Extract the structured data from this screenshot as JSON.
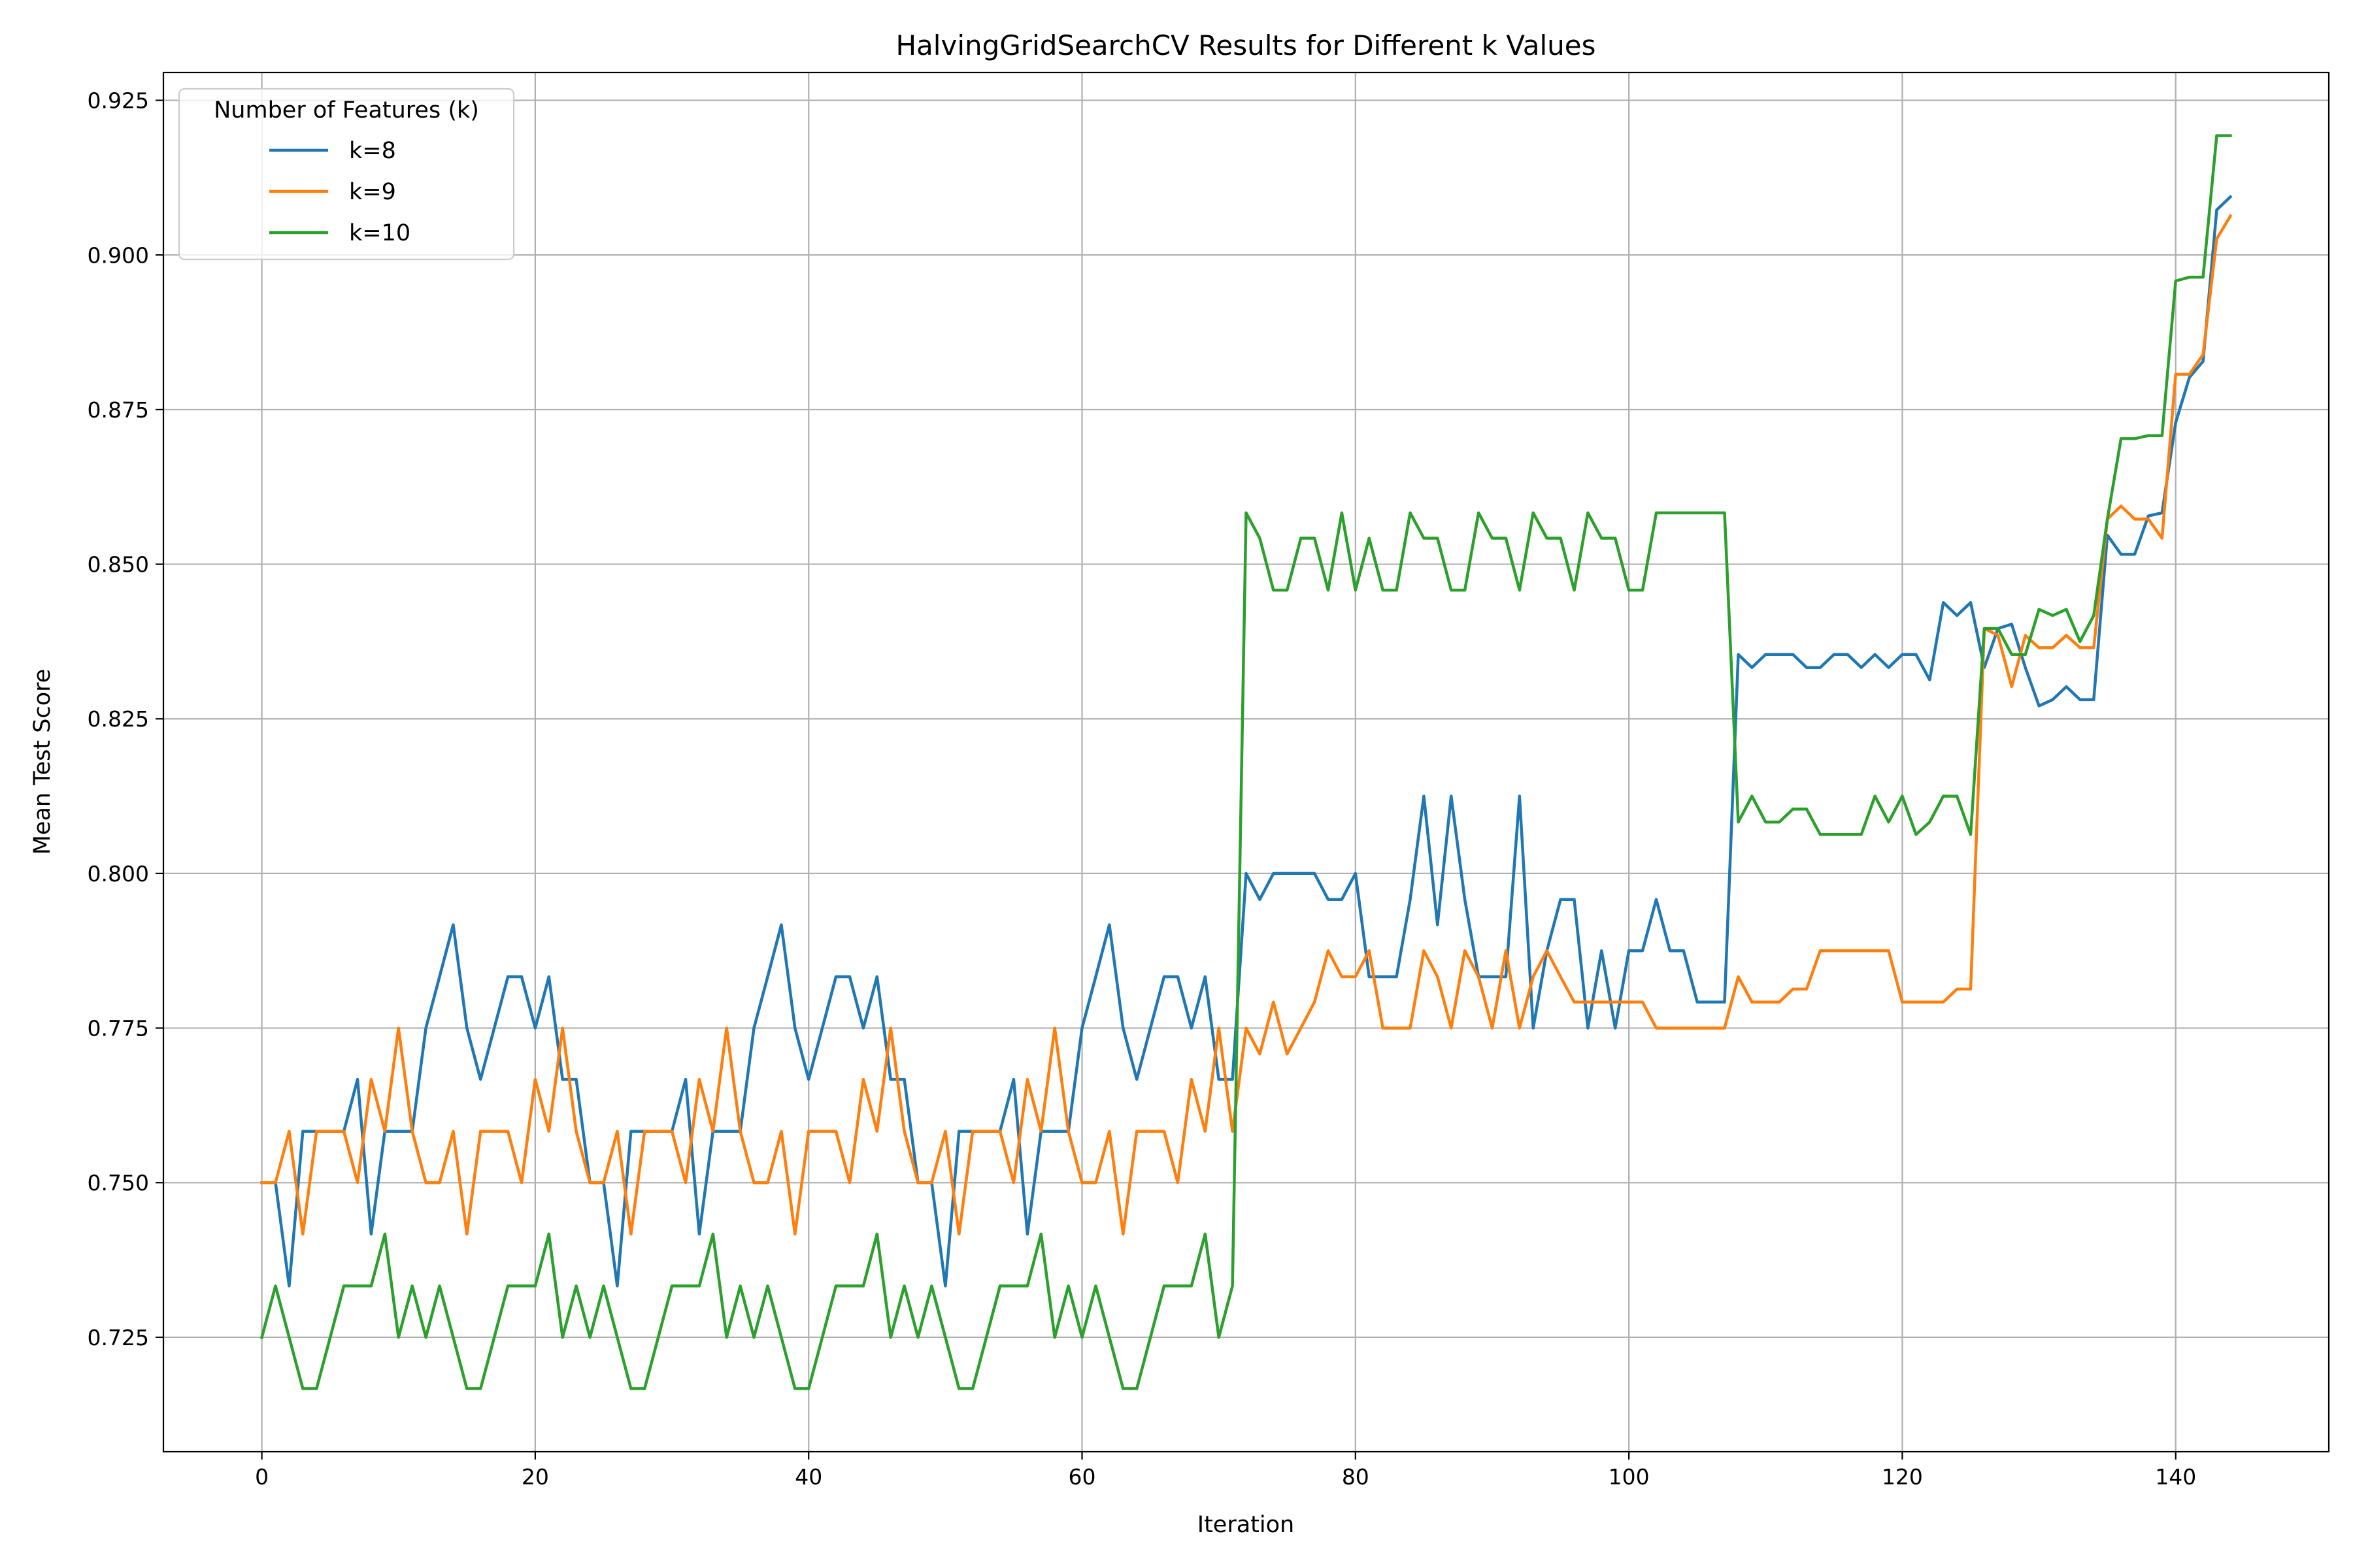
{
  "chart_data": {
    "type": "line",
    "title": "HalvingGridSearchCV Results for Different k Values",
    "xlabel": "Iteration",
    "ylabel": "Mean Test Score",
    "xlim": [
      -7.2,
      151.2
    ],
    "ylim": [
      0.7065,
      0.9295
    ],
    "xticks": [
      0,
      20,
      40,
      60,
      80,
      100,
      120,
      140
    ],
    "xtick_labels": [
      "0",
      "20",
      "40",
      "60",
      "80",
      "100",
      "120",
      "140"
    ],
    "yticks": [
      0.725,
      0.75,
      0.775,
      0.8,
      0.825,
      0.85,
      0.875,
      0.9,
      0.925
    ],
    "ytick_labels": [
      "0.725",
      "0.750",
      "0.775",
      "0.800",
      "0.825",
      "0.850",
      "0.875",
      "0.900",
      "0.925"
    ],
    "grid": true,
    "legend": {
      "title": "Number of Features (k)",
      "position": "top-left"
    },
    "series": [
      {
        "name": "k=8",
        "color": "#1f77b4",
        "values": [
          0.75,
          0.75,
          0.7333,
          0.7583,
          0.7583,
          0.7583,
          0.7583,
          0.7667,
          0.7417,
          0.7583,
          0.7583,
          0.7583,
          0.775,
          0.7833,
          0.7917,
          0.775,
          0.7667,
          0.775,
          0.7833,
          0.7833,
          0.775,
          0.7833,
          0.7667,
          0.7667,
          0.75,
          0.75,
          0.7333,
          0.7583,
          0.7583,
          0.7583,
          0.7583,
          0.7667,
          0.7417,
          0.7583,
          0.7583,
          0.7583,
          0.775,
          0.7833,
          0.7917,
          0.775,
          0.7667,
          0.775,
          0.7833,
          0.7833,
          0.775,
          0.7833,
          0.7667,
          0.7667,
          0.75,
          0.75,
          0.7333,
          0.7583,
          0.7583,
          0.7583,
          0.7583,
          0.7667,
          0.7417,
          0.7583,
          0.7583,
          0.7583,
          0.775,
          0.7833,
          0.7917,
          0.775,
          0.7667,
          0.775,
          0.7833,
          0.7833,
          0.775,
          0.7833,
          0.7667,
          0.7667,
          0.8,
          0.7958,
          0.8,
          0.8,
          0.8,
          0.8,
          0.7958,
          0.7958,
          0.8,
          0.7833,
          0.7833,
          0.7833,
          0.7958,
          0.8125,
          0.7917,
          0.8125,
          0.7958,
          0.7833,
          0.7833,
          0.7833,
          0.8125,
          0.775,
          0.7875,
          0.7958,
          0.7958,
          0.775,
          0.7875,
          0.775,
          0.7875,
          0.7875,
          0.7958,
          0.7875,
          0.7875,
          0.7792,
          0.7792,
          0.7792,
          0.8354,
          0.8333,
          0.8354,
          0.8354,
          0.8354,
          0.8333,
          0.8333,
          0.8354,
          0.8354,
          0.8333,
          0.8354,
          0.8333,
          0.8354,
          0.8354,
          0.8313,
          0.8438,
          0.8417,
          0.8438,
          0.8333,
          0.8396,
          0.8403,
          0.8333,
          0.8271,
          0.8281,
          0.8302,
          0.8281,
          0.8281,
          0.8547,
          0.8516,
          0.8516,
          0.8578,
          0.8583,
          0.8729,
          0.8802,
          0.8828,
          0.9073,
          0.9094
        ]
      },
      {
        "name": "k=9",
        "color": "#ff7f0e",
        "values": [
          0.75,
          0.75,
          0.7583,
          0.7417,
          0.7583,
          0.7583,
          0.7583,
          0.75,
          0.7667,
          0.7583,
          0.775,
          0.7583,
          0.75,
          0.75,
          0.7583,
          0.7417,
          0.7583,
          0.7583,
          0.7583,
          0.75,
          0.7667,
          0.7583,
          0.775,
          0.7583,
          0.75,
          0.75,
          0.7583,
          0.7417,
          0.7583,
          0.7583,
          0.7583,
          0.75,
          0.7667,
          0.7583,
          0.775,
          0.7583,
          0.75,
          0.75,
          0.7583,
          0.7417,
          0.7583,
          0.7583,
          0.7583,
          0.75,
          0.7667,
          0.7583,
          0.775,
          0.7583,
          0.75,
          0.75,
          0.7583,
          0.7417,
          0.7583,
          0.7583,
          0.7583,
          0.75,
          0.7667,
          0.7583,
          0.775,
          0.7583,
          0.75,
          0.75,
          0.7583,
          0.7417,
          0.7583,
          0.7583,
          0.7583,
          0.75,
          0.7667,
          0.7583,
          0.775,
          0.7583,
          0.775,
          0.7708,
          0.7792,
          0.7708,
          0.775,
          0.7792,
          0.7875,
          0.7833,
          0.7833,
          0.7875,
          0.775,
          0.775,
          0.775,
          0.7875,
          0.7833,
          0.775,
          0.7875,
          0.7833,
          0.775,
          0.7875,
          0.775,
          0.7833,
          0.7875,
          0.7833,
          0.7792,
          0.7792,
          0.7792,
          0.7792,
          0.7792,
          0.7792,
          0.775,
          0.775,
          0.775,
          0.775,
          0.775,
          0.775,
          0.7833,
          0.7792,
          0.7792,
          0.7792,
          0.7813,
          0.7813,
          0.7875,
          0.7875,
          0.7875,
          0.7875,
          0.7875,
          0.7875,
          0.7792,
          0.7792,
          0.7792,
          0.7792,
          0.7813,
          0.7813,
          0.8396,
          0.8385,
          0.8302,
          0.8385,
          0.8365,
          0.8365,
          0.8385,
          0.8365,
          0.8365,
          0.8573,
          0.8594,
          0.8573,
          0.8573,
          0.8542,
          0.8807,
          0.8807,
          0.8839,
          0.9026,
          0.9063
        ]
      },
      {
        "name": "k=10",
        "color": "#2ca02c",
        "values": [
          0.725,
          0.7333,
          0.725,
          0.7167,
          0.7167,
          0.725,
          0.7333,
          0.7333,
          0.7333,
          0.7417,
          0.725,
          0.7333,
          0.725,
          0.7333,
          0.725,
          0.7167,
          0.7167,
          0.725,
          0.7333,
          0.7333,
          0.7333,
          0.7417,
          0.725,
          0.7333,
          0.725,
          0.7333,
          0.725,
          0.7167,
          0.7167,
          0.725,
          0.7333,
          0.7333,
          0.7333,
          0.7417,
          0.725,
          0.7333,
          0.725,
          0.7333,
          0.725,
          0.7167,
          0.7167,
          0.725,
          0.7333,
          0.7333,
          0.7333,
          0.7417,
          0.725,
          0.7333,
          0.725,
          0.7333,
          0.725,
          0.7167,
          0.7167,
          0.725,
          0.7333,
          0.7333,
          0.7333,
          0.7417,
          0.725,
          0.7333,
          0.725,
          0.7333,
          0.725,
          0.7167,
          0.7167,
          0.725,
          0.7333,
          0.7333,
          0.7333,
          0.7417,
          0.725,
          0.7333,
          0.8583,
          0.8542,
          0.8458,
          0.8458,
          0.8542,
          0.8542,
          0.8458,
          0.8583,
          0.8458,
          0.8542,
          0.8458,
          0.8458,
          0.8583,
          0.8542,
          0.8542,
          0.8458,
          0.8458,
          0.8583,
          0.8542,
          0.8542,
          0.8458,
          0.8583,
          0.8542,
          0.8542,
          0.8458,
          0.8583,
          0.8542,
          0.8542,
          0.8458,
          0.8458,
          0.8583,
          0.8583,
          0.8583,
          0.8583,
          0.8583,
          0.8583,
          0.8083,
          0.8125,
          0.8083,
          0.8083,
          0.8104,
          0.8104,
          0.8063,
          0.8063,
          0.8063,
          0.8063,
          0.8125,
          0.8083,
          0.8125,
          0.8063,
          0.8083,
          0.8125,
          0.8125,
          0.8063,
          0.8396,
          0.8396,
          0.8354,
          0.8354,
          0.8427,
          0.8417,
          0.8427,
          0.8375,
          0.8417,
          0.8573,
          0.8703,
          0.8703,
          0.8708,
          0.8708,
          0.8958,
          0.8964,
          0.8964,
          0.9193,
          0.9193
        ]
      }
    ]
  }
}
